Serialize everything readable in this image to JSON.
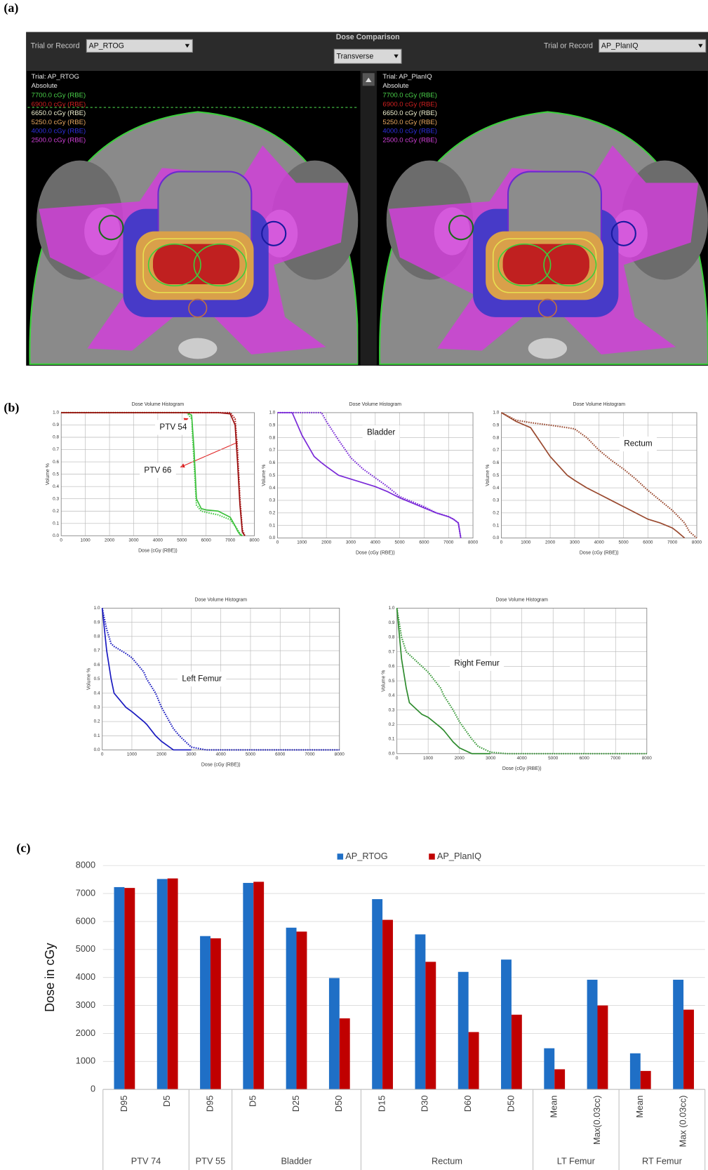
{
  "panel_labels": [
    "(a)",
    "(b)",
    "(c)"
  ],
  "screenshot": {
    "title": "Dose Comparison",
    "view": "Transverse",
    "left": {
      "label": "Trial or Record",
      "record": "AP_RTOG",
      "trial": "Trial: AP_RTOG",
      "mode": "Absolute"
    },
    "right": {
      "label": "Trial or Record",
      "record": "AP_PlanIQ",
      "trial": "Trial: AP_PlanIQ",
      "mode": "Absolute"
    },
    "dose_levels": [
      {
        "text": "7700.0 cGy (RBE)",
        "color": "#4ad04a"
      },
      {
        "text": "6900.0 cGy (RBE)",
        "color": "#d02020"
      },
      {
        "text": "6650.0 cGy (RBE)",
        "color": "#f0f0d0"
      },
      {
        "text": "5250.0 cGy (RBE)",
        "color": "#e8a860"
      },
      {
        "text": "4000.0 cGy (RBE)",
        "color": "#3030e0"
      },
      {
        "text": "2500.0 cGy (RBE)",
        "color": "#d040d8"
      }
    ]
  },
  "chart_data": [
    {
      "type": "line",
      "title": "Dose Volume Histogram",
      "x_label": "Dose (cGy (RBE))",
      "y_label": "Volume %",
      "x": [
        0,
        1000,
        2000,
        3000,
        4000,
        5000,
        5200,
        5400,
        5500,
        5600,
        5800,
        6000,
        6500,
        7000,
        7200,
        7300,
        7400,
        7500,
        7600
      ],
      "series": [
        {
          "color": "#45c845",
          "style": "dotted",
          "values": [
            1,
            1,
            1,
            1,
            1,
            1,
            1,
            0.95,
            0.6,
            0.25,
            0.2,
            0.19,
            0.17,
            0.13,
            0.08,
            0.05,
            0.02,
            0,
            null
          ]
        },
        {
          "color": "#3cc03c",
          "style": "solid",
          "values": [
            1,
            1,
            1,
            1,
            1,
            1,
            1,
            0.98,
            0.7,
            0.3,
            0.22,
            0.21,
            0.2,
            0.15,
            0.08,
            0.04,
            0.01,
            0,
            null
          ]
        },
        {
          "color": "#b01a1a",
          "style": "dotted",
          "values": [
            1,
            1,
            1,
            1,
            1,
            1,
            1,
            1,
            1,
            1,
            1,
            1,
            1,
            1,
            0.95,
            0.7,
            0.3,
            0.05,
            0
          ]
        },
        {
          "color": "#9a1010",
          "style": "solid",
          "values": [
            1,
            1,
            1,
            1,
            1,
            1,
            1,
            1,
            1,
            1,
            1,
            1,
            1,
            0.99,
            0.9,
            0.6,
            0.25,
            0.03,
            0
          ]
        }
      ],
      "xlim": [
        0,
        8000
      ],
      "ylim": [
        0,
        1
      ],
      "xticks": [
        0,
        1000,
        2000,
        3000,
        4000,
        5000,
        6000,
        7000,
        8000
      ],
      "yticks": [
        {
          "value": 0,
          "label": "0.0"
        },
        0.1,
        0.2,
        0.3,
        0.4,
        0.5,
        0.6,
        0.7,
        0.8,
        0.9,
        {
          "value": 1,
          "label": "1.0"
        }
      ],
      "grid": true,
      "annotations": [
        "PTV 54",
        "PTV 66"
      ]
    },
    {
      "type": "line",
      "title": "Dose Volume Histogram",
      "x_label": "Dose (cGy (RBE))",
      "y_label": "Volume %",
      "x": [
        0,
        600,
        1000,
        1500,
        1800,
        2000,
        2500,
        3000,
        3500,
        4000,
        4500,
        5000,
        5500,
        6000,
        6500,
        7000,
        7200,
        7400,
        7500
      ],
      "series": [
        {
          "color": "#7a2ad8",
          "style": "solid",
          "values": [
            1,
            1,
            0.82,
            0.65,
            0.6,
            0.57,
            0.5,
            0.47,
            0.44,
            0.41,
            0.37,
            0.32,
            0.28,
            0.24,
            0.2,
            0.17,
            0.15,
            0.12,
            0
          ]
        },
        {
          "color": "#7a2ad8",
          "style": "dotted",
          "values": [
            1,
            1,
            1,
            1,
            1,
            0.93,
            0.78,
            0.64,
            0.55,
            0.48,
            0.41,
            0.33,
            0.29,
            0.25,
            0.2,
            0.17,
            0.15,
            0.12,
            0
          ]
        }
      ],
      "xlim": [
        0,
        8000
      ],
      "ylim": [
        0,
        1
      ],
      "xticks": [
        0,
        1000,
        2000,
        3000,
        4000,
        5000,
        6000,
        7000,
        8000
      ],
      "yticks": [
        {
          "value": 0,
          "label": "0.0"
        },
        0.1,
        0.2,
        0.3,
        0.4,
        0.5,
        0.6,
        0.7,
        0.8,
        0.9,
        {
          "value": 1,
          "label": "1.0"
        }
      ],
      "grid": true,
      "annotations": [
        "Bladder"
      ]
    },
    {
      "type": "line",
      "title": "Dose Volume Histogram",
      "x_label": "Dose (cGy (RBE))",
      "y_label": "Volume %",
      "x": [
        0,
        600,
        1200,
        2000,
        2700,
        3000,
        3500,
        4000,
        4500,
        5000,
        5500,
        6000,
        6500,
        7000,
        7200,
        7500,
        7700,
        8000
      ],
      "series": [
        {
          "color": "#9a4a30",
          "style": "solid",
          "values": [
            1,
            0.93,
            0.88,
            0.65,
            0.5,
            0.46,
            0.4,
            0.35,
            0.3,
            0.25,
            0.2,
            0.15,
            0.12,
            0.08,
            0.05,
            0,
            null,
            null
          ]
        },
        {
          "color": "#9a4a30",
          "style": "dotted",
          "values": [
            1,
            0.94,
            0.92,
            0.9,
            0.88,
            0.87,
            0.8,
            0.7,
            0.62,
            0.55,
            0.47,
            0.38,
            0.3,
            0.22,
            0.18,
            0.12,
            0.05,
            0
          ]
        }
      ],
      "xlim": [
        0,
        8000
      ],
      "ylim": [
        0,
        1
      ],
      "xticks": [
        0,
        1000,
        2000,
        3000,
        4000,
        5000,
        6000,
        7000,
        8000
      ],
      "yticks": [
        {
          "value": 0,
          "label": "0.0"
        },
        0.1,
        0.2,
        0.3,
        0.4,
        0.5,
        0.6,
        0.7,
        0.8,
        0.9,
        {
          "value": 1,
          "label": "1.0"
        }
      ],
      "grid": true,
      "annotations": [
        "Rectum"
      ]
    },
    {
      "type": "line",
      "title": "Dose Volume Histogram",
      "x_label": "Dose (cGy (RBE))",
      "y_label": "Volume %",
      "x": [
        0,
        150,
        300,
        400,
        800,
        1000,
        1400,
        1500,
        1800,
        2000,
        2400,
        2600,
        3000,
        3500,
        4000,
        5000,
        6000,
        7000,
        8000
      ],
      "series": [
        {
          "color": "#1a1ac0",
          "style": "solid",
          "values": [
            1,
            0.7,
            0.5,
            0.4,
            0.3,
            0.27,
            0.2,
            0.18,
            0.1,
            0.06,
            0,
            0,
            0,
            null,
            null,
            null,
            null,
            null,
            null
          ]
        },
        {
          "color": "#1a1ac0",
          "style": "dotted",
          "values": [
            1,
            0.85,
            0.75,
            0.73,
            0.68,
            0.65,
            0.55,
            0.5,
            0.4,
            0.3,
            0.15,
            0.1,
            0.02,
            0,
            0,
            0,
            0,
            0,
            0
          ]
        }
      ],
      "xlim": [
        0,
        8000
      ],
      "ylim": [
        0,
        1
      ],
      "xticks": [
        0,
        1000,
        2000,
        3000,
        4000,
        5000,
        6000,
        7000,
        8000
      ],
      "yticks": [
        {
          "value": 0,
          "label": "0.0"
        },
        0.1,
        0.2,
        0.3,
        0.4,
        0.5,
        0.6,
        0.7,
        0.8,
        0.9,
        {
          "value": 1,
          "label": "1.0"
        }
      ],
      "grid": true,
      "annotations": [
        "Left Femur"
      ]
    },
    {
      "type": "line",
      "title": "Dose Volume Histogram",
      "x_label": "Dose (cGy (RBE))",
      "y_label": "Volume %",
      "x": [
        0,
        150,
        300,
        400,
        800,
        1000,
        1400,
        1500,
        1800,
        2000,
        2400,
        2600,
        3000,
        3500,
        4000,
        5000,
        6000,
        7000,
        8000
      ],
      "series": [
        {
          "color": "#2e8b2e",
          "style": "solid",
          "values": [
            1,
            0.65,
            0.45,
            0.35,
            0.27,
            0.25,
            0.18,
            0.16,
            0.08,
            0.04,
            0,
            0,
            0,
            null,
            null,
            null,
            null,
            null,
            null
          ]
        },
        {
          "color": "#3a9a3a",
          "style": "dotted",
          "values": [
            1,
            0.8,
            0.7,
            0.68,
            0.6,
            0.56,
            0.45,
            0.4,
            0.3,
            0.22,
            0.1,
            0.05,
            0.01,
            0,
            0,
            0,
            0,
            0,
            0
          ]
        }
      ],
      "xlim": [
        0,
        8000
      ],
      "ylim": [
        0,
        1
      ],
      "xticks": [
        0,
        1000,
        2000,
        3000,
        4000,
        5000,
        6000,
        7000,
        8000
      ],
      "yticks": [
        {
          "value": 0,
          "label": "0.0"
        },
        0.1,
        0.2,
        0.3,
        0.4,
        0.5,
        0.6,
        0.7,
        0.8,
        0.9,
        {
          "value": 1,
          "label": "1.0"
        }
      ],
      "grid": true,
      "annotations": [
        "Right Femur"
      ]
    },
    {
      "type": "bar",
      "y_label": "Dose in cGy",
      "categories": [
        "D95",
        "D5",
        "D95",
        "D5",
        "D25",
        "D50",
        "D15",
        "D30",
        "D60",
        "D50",
        "Mean",
        "Max(0.03cc)",
        "Mean",
        "Max (0.03cc)"
      ],
      "category_groups": [
        "PTV 74",
        "PTV 74",
        "PTV 55",
        "Bladder",
        "Bladder",
        "Bladder",
        "Rectum",
        "Rectum",
        "Rectum",
        "Rectum",
        "LT Femur",
        "LT Femur",
        "RT Femur",
        "RT Femur"
      ],
      "series": [
        {
          "name": "AP_RTOG",
          "color": "#1f6fc6",
          "values": [
            7230,
            7520,
            5480,
            7380,
            5780,
            3980,
            6800,
            5540,
            4200,
            4640,
            1470,
            3920,
            1290,
            3920
          ]
        },
        {
          "name": "AP_PlanIQ",
          "color": "#c00000",
          "values": [
            7200,
            7540,
            5400,
            7420,
            5640,
            2540,
            6060,
            4560,
            2050,
            2670,
            720,
            3000,
            660,
            2850
          ]
        }
      ],
      "ylim": [
        0,
        8000
      ],
      "yticks": [
        0,
        1000,
        2000,
        3000,
        4000,
        5000,
        6000,
        7000,
        8000
      ],
      "grid": true,
      "legend": "top"
    }
  ]
}
